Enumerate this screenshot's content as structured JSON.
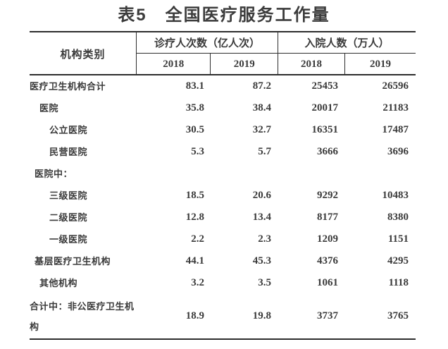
{
  "title": "表5　全国医疗服务工作量",
  "colors": {
    "text": "#3a3a3a",
    "line": "#2d2d2d",
    "background": "#ffffff"
  },
  "table": {
    "header": {
      "category": "机构类别",
      "groups": [
        {
          "label": "诊疗人次数（亿人次）",
          "years": [
            "2018",
            "2019"
          ]
        },
        {
          "label": "入院人数（万人）",
          "years": [
            "2018",
            "2019"
          ]
        }
      ]
    },
    "rows": [
      {
        "label": "医疗卫生机构合计",
        "indent": 0,
        "values": [
          "83.1",
          "87.2",
          "25453",
          "26596"
        ]
      },
      {
        "label": "医院",
        "indent": 2,
        "values": [
          "35.8",
          "38.4",
          "20017",
          "21183"
        ]
      },
      {
        "label": "公立医院",
        "indent": 3,
        "values": [
          "30.5",
          "32.7",
          "16351",
          "17487"
        ]
      },
      {
        "label": "民营医院",
        "indent": 3,
        "values": [
          "5.3",
          "5.7",
          "3666",
          "3696"
        ]
      },
      {
        "label": "医院中：",
        "indent": 1,
        "values": [
          "",
          "",
          "",
          ""
        ]
      },
      {
        "label": "三级医院",
        "indent": 3,
        "values": [
          "18.5",
          "20.6",
          "9292",
          "10483"
        ]
      },
      {
        "label": "二级医院",
        "indent": 3,
        "values": [
          "12.8",
          "13.4",
          "8177",
          "8380"
        ]
      },
      {
        "label": "一级医院",
        "indent": 3,
        "values": [
          "2.2",
          "2.3",
          "1209",
          "1151"
        ]
      },
      {
        "label": "基层医疗卫生机构",
        "indent": 1,
        "values": [
          "44.1",
          "45.3",
          "4376",
          "4295"
        ]
      },
      {
        "label": "其他机构",
        "indent": 2,
        "values": [
          "3.2",
          "3.5",
          "1061",
          "1118"
        ]
      },
      {
        "label": "合计中：非公医疗卫生机构",
        "indent": 0,
        "values": [
          "18.9",
          "19.8",
          "3737",
          "3765"
        ]
      }
    ]
  }
}
